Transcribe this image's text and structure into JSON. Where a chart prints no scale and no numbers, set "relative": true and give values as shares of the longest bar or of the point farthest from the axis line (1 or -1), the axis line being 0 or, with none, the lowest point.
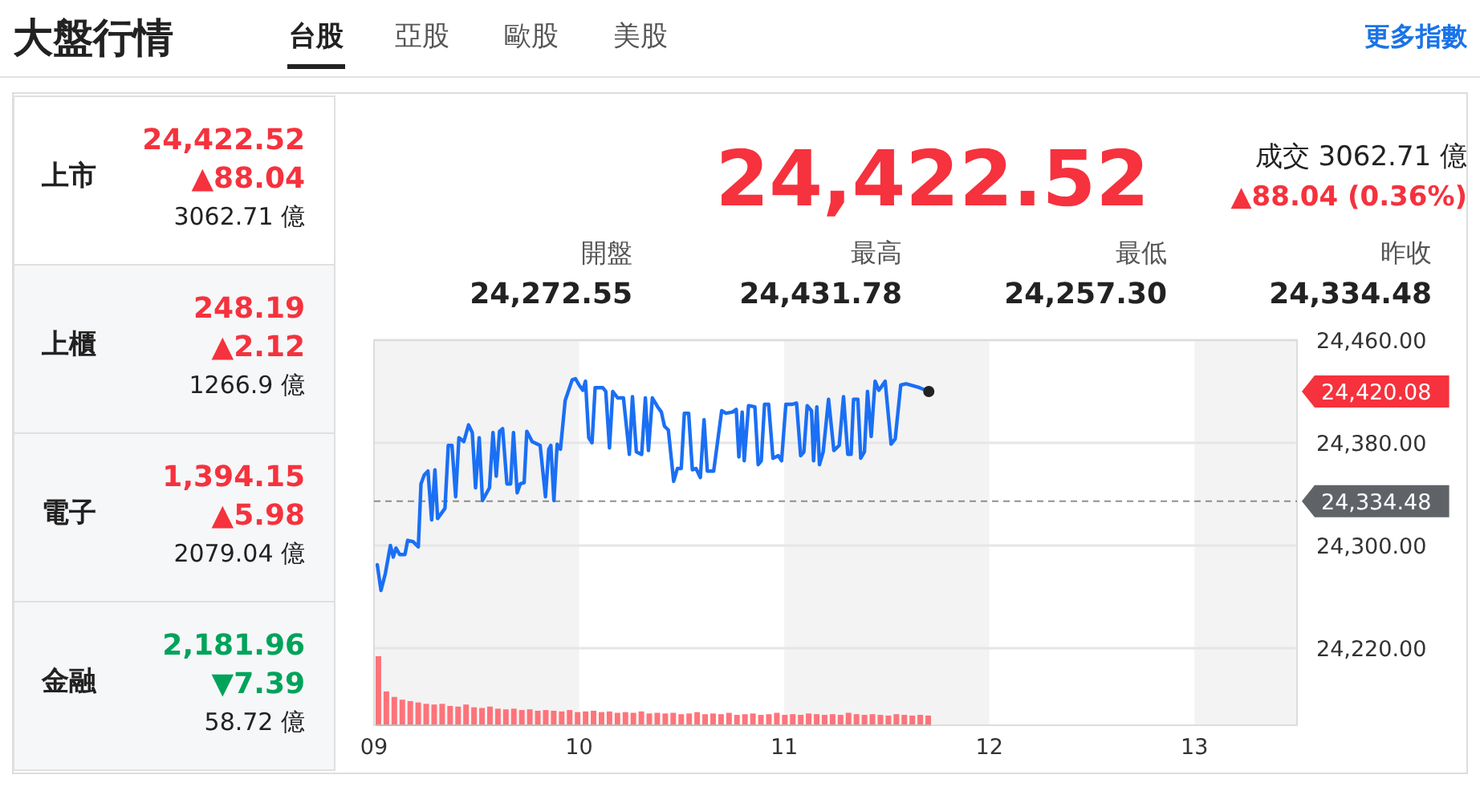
{
  "chart_data": [
    {
      "type": "line",
      "title": "大盤行情",
      "annotations": [
        "台股",
        "亞股",
        "歐股",
        "美股",
        "更多指數",
        "上市",
        "24,422.52",
        "▲88.04",
        "3062.71 億",
        "上櫃",
        "248.19",
        "▲2.12",
        "1266.9 億",
        "電子",
        "1,394.15",
        "▲5.98",
        "2079.04 億",
        "金融",
        "2,181.96",
        "▼7.39",
        "58.72 億",
        "24,422.52",
        "成交 3062.71 億",
        "▲88.04 (0.36%)",
        "開盤",
        "24,272.55",
        "最高",
        "24,431.78",
        "最低",
        "24,257.30",
        "昨收",
        "24,334.48",
        "24,420.08"
      ],
      "xlim": [
        9,
        13.5
      ],
      "xticks": [
        {
          "value": 9,
          "label": "09"
        },
        {
          "value": 10,
          "label": "10"
        },
        {
          "value": 11,
          "label": "11"
        },
        {
          "value": 12,
          "label": "12"
        },
        {
          "value": 13,
          "label": "13"
        }
      ],
      "ylim": [
        24160,
        24460
      ],
      "yticks": [
        {
          "value": 24220,
          "label": "24,220.00"
        },
        {
          "value": 24300,
          "label": "24,300.00"
        },
        {
          "value": 24380,
          "label": "24,380.00"
        },
        {
          "value": 24460,
          "label": "24,460.00"
        }
      ],
      "grid": "y",
      "marker": "none",
      "line_style": "solid",
      "bands": [
        {
          "axis": "x",
          "from": 9,
          "to": 10,
          "color": "#f3f3f4"
        },
        {
          "axis": "x",
          "from": 11,
          "to": 12,
          "color": "#f3f3f4"
        },
        {
          "axis": "x",
          "from": 13,
          "to": 13.5,
          "color": "#f3f3f4"
        }
      ],
      "ref_lines": [
        {
          "axis": "y",
          "value": 24334.48,
          "label": "24,334.48",
          "color": "#5f6368",
          "line_style": "dashed"
        }
      ],
      "series": [
        {
          "color": "#1a6ff4",
          "x": [
            9.016,
            9.034,
            9.055,
            9.08,
            9.094,
            9.107,
            9.125,
            9.151,
            9.164,
            9.19,
            9.216,
            9.229,
            9.245,
            9.263,
            9.281,
            9.297,
            9.31,
            9.346,
            9.362,
            9.38,
            9.398,
            9.414,
            9.438,
            9.461,
            9.479,
            9.495,
            9.513,
            9.529,
            9.563,
            9.58,
            9.596,
            9.612,
            9.627,
            9.648,
            9.666,
            9.68,
            9.698,
            9.713,
            9.732,
            9.745,
            9.771,
            9.81,
            9.836,
            9.852,
            9.862,
            9.877,
            9.893,
            9.909,
            9.932,
            9.966,
            9.982,
            10.0,
            10.018,
            10.031,
            10.047,
            10.063,
            10.078,
            10.115,
            10.13,
            10.148,
            10.164,
            10.188,
            10.201,
            10.216,
            10.245,
            10.26,
            10.279,
            10.305,
            10.323,
            10.338,
            10.357,
            10.383,
            10.401,
            10.416,
            10.435,
            10.461,
            10.479,
            10.498,
            10.513,
            10.534,
            10.552,
            10.57,
            10.591,
            10.609,
            10.625,
            10.656,
            10.695,
            10.716,
            10.748,
            10.766,
            10.779,
            10.795,
            10.805,
            10.826,
            10.857,
            10.873,
            10.888,
            10.904,
            10.924,
            10.945,
            10.971,
            10.987,
            11.008,
            11.039,
            11.06,
            11.08,
            11.096,
            11.112,
            11.133,
            11.143,
            11.159,
            11.172,
            11.19,
            11.216,
            11.242,
            11.268,
            11.289,
            11.31,
            11.326,
            11.338,
            11.359,
            11.373,
            11.391,
            11.406,
            11.424,
            11.443,
            11.461,
            11.471,
            11.492,
            11.521,
            11.541,
            11.568,
            11.594,
            11.659,
            11.705
          ],
          "values": [
            24285,
            24265,
            24278,
            24300,
            24291,
            24298,
            24293,
            24293,
            24304,
            24303,
            24299,
            24348,
            24355,
            24358,
            24320,
            24359,
            24321,
            24329,
            24378,
            24378,
            24338,
            24384,
            24381,
            24394,
            24388,
            24345,
            24384,
            24335,
            24345,
            24388,
            24354,
            24389,
            24391,
            24348,
            24348,
            24388,
            24341,
            24348,
            24349,
            24389,
            24381,
            24378,
            24338,
            24375,
            24378,
            24335,
            24379,
            24375,
            24413,
            24429,
            24430,
            24425,
            24421,
            24428,
            24384,
            24380,
            24423,
            24423,
            24420,
            24376,
            24420,
            24415,
            24415,
            24415,
            24371,
            24416,
            24373,
            24371,
            24415,
            24374,
            24415,
            24408,
            24404,
            24393,
            24390,
            24350,
            24360,
            24360,
            24403,
            24403,
            24359,
            24360,
            24353,
            24398,
            24358,
            24358,
            24405,
            24403,
            24404,
            24406,
            24369,
            24404,
            24366,
            24409,
            24408,
            24363,
            24366,
            24410,
            24410,
            24368,
            24370,
            24366,
            24410,
            24410,
            24411,
            24370,
            24373,
            24409,
            24405,
            24366,
            24408,
            24363,
            24373,
            24414,
            24374,
            24378,
            24416,
            24371,
            24371,
            24414,
            24414,
            24368,
            24373,
            24420,
            24385,
            24428,
            24421,
            24423,
            24428,
            24379,
            24383,
            24425,
            24426,
            24423,
            24420
          ]
        }
      ]
    },
    {
      "type": "bar",
      "relative": true,
      "color": "#ff5c63",
      "categories": [
        null,
        null,
        null,
        null,
        null,
        null,
        null,
        null,
        null,
        null,
        null,
        null,
        null,
        null,
        null,
        null,
        null,
        null,
        null,
        null,
        null,
        null,
        null,
        null,
        null,
        null,
        null,
        null,
        null,
        null,
        null,
        null,
        null,
        null,
        null,
        null,
        null,
        null,
        null,
        null,
        null,
        null,
        null,
        null,
        null,
        null,
        null,
        null,
        null,
        null,
        null,
        null,
        null,
        null,
        null,
        null,
        null,
        null,
        null,
        null,
        null,
        null,
        null,
        null,
        null,
        null,
        null,
        null,
        null,
        null
      ],
      "values": [
        1,
        0.49,
        0.41,
        0.37,
        0.35,
        0.33,
        0.31,
        0.3,
        0.31,
        0.28,
        0.27,
        0.3,
        0.26,
        0.25,
        0.27,
        0.24,
        0.23,
        0.24,
        0.22,
        0.23,
        0.21,
        0.22,
        0.21,
        0.2,
        0.22,
        0.19,
        0.2,
        0.21,
        0.19,
        0.2,
        0.18,
        0.19,
        0.18,
        0.2,
        0.17,
        0.18,
        0.17,
        0.18,
        0.16,
        0.17,
        0.19,
        0.16,
        0.17,
        0.16,
        0.18,
        0.15,
        0.16,
        0.17,
        0.15,
        0.16,
        0.18,
        0.15,
        0.16,
        0.15,
        0.17,
        0.16,
        0.15,
        0.16,
        0.15,
        0.18,
        0.16,
        0.15,
        0.16,
        0.15,
        0.14,
        0.16,
        0.15,
        0.14,
        0.15,
        0.14
      ]
    }
  ]
}
